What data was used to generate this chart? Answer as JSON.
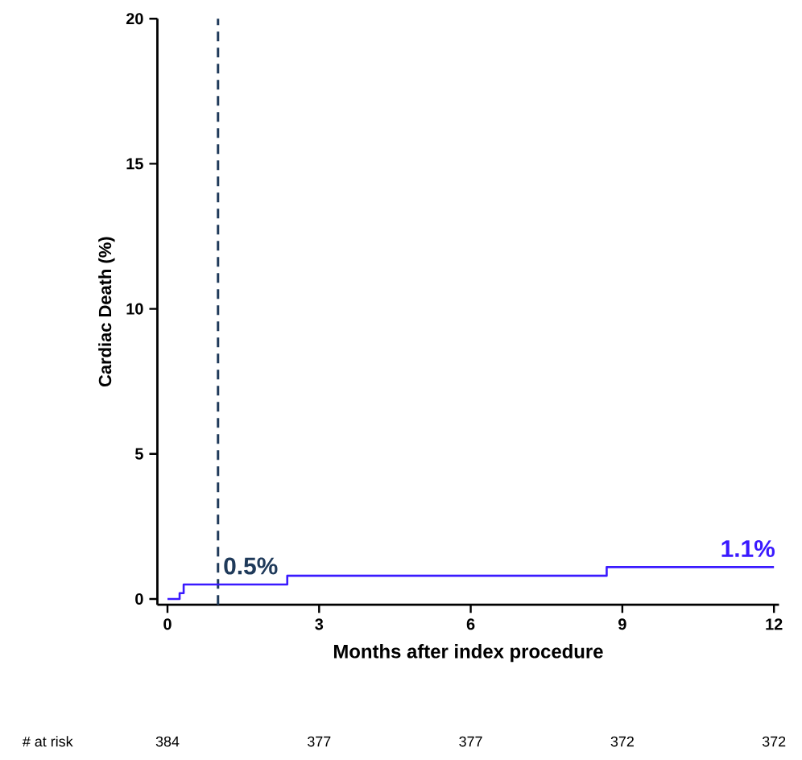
{
  "chart_data": {
    "type": "step",
    "xlabel": "Months after index procedure",
    "ylabel": "Cardiac Death (%)",
    "series": [
      {
        "x": [
          0,
          0.24,
          0.32,
          2.37,
          8.69,
          12
        ],
        "values": [
          0,
          0.2,
          0.5,
          0.8,
          1.1,
          1.1
        ],
        "color": "#3a1aff"
      }
    ],
    "xlim": [
      -0.2,
      12.1
    ],
    "ylim": [
      -0.2,
      20
    ],
    "xticks": [
      0,
      3,
      6,
      9,
      12
    ],
    "yticks": [
      0,
      5,
      10,
      15,
      20
    ],
    "ref_lines": [
      {
        "axis": "x",
        "value": 1,
        "color": "#1f3a5a",
        "line_style": "dashed"
      }
    ],
    "annotations": [
      {
        "text": "0.5%",
        "x": 1,
        "y": 0.5
      },
      {
        "text": "1.1%",
        "x": 12,
        "y": 1.1
      },
      "# at risk",
      "384",
      "377",
      "377",
      "372",
      "372"
    ],
    "grid": false
  }
}
